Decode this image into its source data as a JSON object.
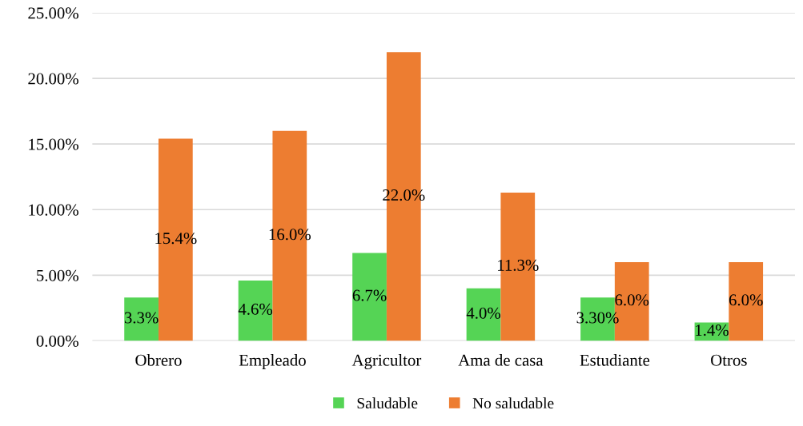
{
  "chart_data": {
    "type": "bar",
    "categories": [
      "Obrero",
      "Empleado",
      "Agricultor",
      "Ama de casa",
      "Estudiante",
      "Otros"
    ],
    "series": [
      {
        "name": "Saludable",
        "color": "#55d455",
        "values": [
          3.3,
          4.6,
          6.7,
          4.0,
          3.3,
          1.4
        ],
        "value_labels": [
          "3.3%",
          "4.6%",
          "6.7%",
          "4.0%",
          "3.30%",
          "1.4%"
        ]
      },
      {
        "name": "No saludable",
        "color": "#ed7d31",
        "values": [
          15.4,
          16.0,
          22.0,
          11.3,
          6.0,
          6.0
        ],
        "value_labels": [
          "15.4%",
          "16.0%",
          "22.0%",
          "11.3%",
          "6.0%",
          "6.0%"
        ]
      }
    ],
    "ylim": [
      0,
      25
    ],
    "yticks": [
      {
        "value": 0,
        "label": "0.00%"
      },
      {
        "value": 5,
        "label": "5.00%"
      },
      {
        "value": 10,
        "label": "10.00%"
      },
      {
        "value": 15,
        "label": "15.00%"
      },
      {
        "value": 20,
        "label": "20.00%"
      },
      {
        "value": 25,
        "label": "25.00%"
      }
    ],
    "grid": "y",
    "legend": "bottom"
  }
}
